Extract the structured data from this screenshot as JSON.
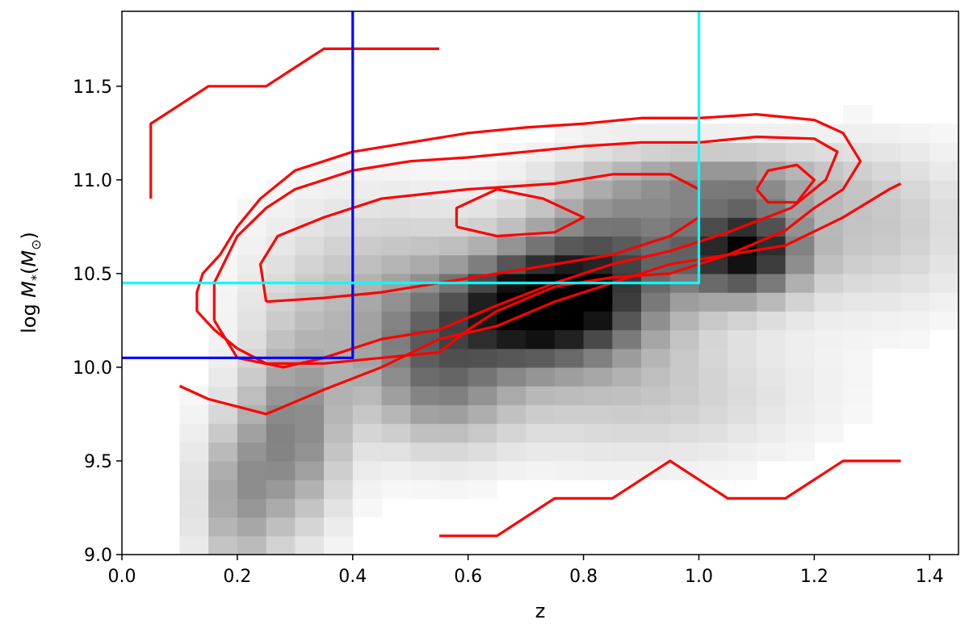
{
  "chart_data": {
    "type": "heatmap",
    "xlabel": "z",
    "ylabel_prefix": "log ",
    "ylabel_math_symbol": "M",
    "ylabel_math_subscript": "*",
    "ylabel_math_unit": "M",
    "ylabel_math_unit_subscript": "⊙",
    "xlim": [
      0.0,
      1.45
    ],
    "ylim": [
      9.0,
      11.9
    ],
    "xticks": [
      "0.0",
      "0.2",
      "0.4",
      "0.6",
      "0.8",
      "1.0",
      "1.2",
      "1.4"
    ],
    "xtick_values": [
      0.0,
      0.2,
      0.4,
      0.6,
      0.8,
      1.0,
      1.2,
      1.4
    ],
    "yticks": [
      "9.0",
      "9.5",
      "10.0",
      "10.5",
      "11.0",
      "11.5"
    ],
    "ytick_values": [
      9.0,
      9.5,
      10.0,
      10.5,
      11.0,
      11.5
    ],
    "grid": false,
    "density": {
      "colormap": "greys",
      "x_bin_width": 0.05,
      "y_bin_width": 0.1,
      "comment_units": "x = bin center redshift, y = bin center log mass, v = relative density 0-1",
      "blobs": [
        {
          "x": 0.73,
          "y": 10.32,
          "sx": 0.1,
          "sy": 0.2,
          "a": 1.0
        },
        {
          "x": 1.08,
          "y": 10.62,
          "sx": 0.07,
          "sy": 0.17,
          "a": 0.88
        },
        {
          "x": 0.86,
          "y": 10.6,
          "sx": 0.11,
          "sy": 0.3,
          "a": 0.55
        },
        {
          "x": 0.55,
          "y": 10.0,
          "sx": 0.09,
          "sy": 0.28,
          "a": 0.45
        },
        {
          "x": 0.3,
          "y": 9.65,
          "sx": 0.06,
          "sy": 0.35,
          "a": 0.45
        },
        {
          "x": 0.2,
          "y": 9.3,
          "sx": 0.05,
          "sy": 0.3,
          "a": 0.35
        },
        {
          "x": 0.45,
          "y": 10.4,
          "sx": 0.14,
          "sy": 0.35,
          "a": 0.25
        },
        {
          "x": 1.3,
          "y": 10.75,
          "sx": 0.13,
          "sy": 0.3,
          "a": 0.22
        },
        {
          "x": 0.9,
          "y": 9.85,
          "sx": 0.2,
          "sy": 0.25,
          "a": 0.2
        },
        {
          "x": 1.05,
          "y": 11.0,
          "sx": 0.12,
          "sy": 0.12,
          "a": 0.35
        }
      ]
    },
    "contours": [
      {
        "name": "contour-outer",
        "color": "#ff0000",
        "points": [
          [
            0.25,
            10.02
          ],
          [
            0.2,
            10.1
          ],
          [
            0.16,
            10.2
          ],
          [
            0.13,
            10.3
          ],
          [
            0.13,
            10.4
          ],
          [
            0.14,
            10.5
          ],
          [
            0.17,
            10.6
          ],
          [
            0.2,
            10.75
          ],
          [
            0.24,
            10.9
          ],
          [
            0.3,
            11.05
          ],
          [
            0.4,
            11.15
          ],
          [
            0.5,
            11.2
          ],
          [
            0.6,
            11.25
          ],
          [
            0.7,
            11.28
          ],
          [
            0.8,
            11.3
          ],
          [
            0.9,
            11.33
          ],
          [
            1.0,
            11.33
          ],
          [
            1.1,
            11.35
          ],
          [
            1.2,
            11.32
          ],
          [
            1.25,
            11.25
          ],
          [
            1.28,
            11.1
          ],
          [
            1.25,
            10.95
          ],
          [
            1.2,
            10.85
          ],
          [
            1.15,
            10.73
          ],
          [
            1.05,
            10.6
          ],
          [
            0.95,
            10.5
          ],
          [
            0.85,
            10.48
          ],
          [
            0.75,
            10.43
          ],
          [
            0.65,
            10.3
          ],
          [
            0.6,
            10.2
          ],
          [
            0.55,
            10.08
          ],
          [
            0.45,
            10.05
          ],
          [
            0.35,
            10.02
          ],
          [
            0.25,
            10.02
          ]
        ]
      },
      {
        "name": "contour-inner-left",
        "color": "#ff0000",
        "points": [
          [
            0.25,
            10.35
          ],
          [
            0.24,
            10.55
          ],
          [
            0.27,
            10.7
          ],
          [
            0.35,
            10.8
          ],
          [
            0.45,
            10.9
          ],
          [
            0.6,
            10.95
          ],
          [
            0.75,
            10.98
          ],
          [
            0.85,
            11.03
          ],
          [
            0.95,
            11.03
          ],
          [
            1.0,
            10.95
          ],
          [
            1.0,
            10.8
          ],
          [
            0.95,
            10.7
          ],
          [
            0.85,
            10.6
          ],
          [
            0.75,
            10.55
          ],
          [
            0.65,
            10.5
          ],
          [
            0.55,
            10.45
          ],
          [
            0.45,
            10.4
          ],
          [
            0.35,
            10.37
          ],
          [
            0.25,
            10.35
          ]
        ]
      },
      {
        "name": "contour-inner-mid",
        "color": "#ff0000",
        "points": [
          [
            0.58,
            10.75
          ],
          [
            0.58,
            10.85
          ],
          [
            0.65,
            10.95
          ],
          [
            0.73,
            10.9
          ],
          [
            0.8,
            10.8
          ],
          [
            0.75,
            10.72
          ],
          [
            0.65,
            10.7
          ],
          [
            0.58,
            10.75
          ]
        ]
      },
      {
        "name": "contour-inner-right",
        "color": "#ff0000",
        "points": [
          [
            1.1,
            10.95
          ],
          [
            1.12,
            11.05
          ],
          [
            1.17,
            11.08
          ],
          [
            1.2,
            11.0
          ],
          [
            1.17,
            10.88
          ],
          [
            1.12,
            10.88
          ],
          [
            1.1,
            10.95
          ]
        ]
      },
      {
        "name": "contour-mid",
        "color": "#ff0000",
        "points": [
          [
            0.16,
            10.25
          ],
          [
            0.16,
            10.45
          ],
          [
            0.2,
            10.7
          ],
          [
            0.25,
            10.85
          ],
          [
            0.3,
            10.95
          ],
          [
            0.4,
            11.05
          ],
          [
            0.5,
            11.1
          ],
          [
            0.6,
            11.12
          ],
          [
            0.7,
            11.15
          ],
          [
            0.8,
            11.18
          ],
          [
            0.9,
            11.2
          ],
          [
            1.0,
            11.2
          ],
          [
            1.1,
            11.23
          ],
          [
            1.2,
            11.22
          ],
          [
            1.24,
            11.15
          ],
          [
            1.22,
            11.0
          ],
          [
            1.16,
            10.85
          ],
          [
            1.05,
            10.72
          ],
          [
            0.95,
            10.62
          ],
          [
            0.85,
            10.55
          ],
          [
            0.75,
            10.45
          ],
          [
            0.65,
            10.33
          ],
          [
            0.55,
            10.2
          ],
          [
            0.45,
            10.15
          ],
          [
            0.35,
            10.05
          ],
          [
            0.28,
            10.0
          ],
          [
            0.2,
            10.05
          ],
          [
            0.16,
            10.25
          ]
        ]
      },
      {
        "name": "contour-bottom",
        "color": "#ff0000",
        "points": [
          [
            0.55,
            9.1
          ],
          [
            0.65,
            9.1
          ],
          [
            0.75,
            9.3
          ],
          [
            0.85,
            9.3
          ],
          [
            0.95,
            9.5
          ],
          [
            1.05,
            9.3
          ],
          [
            1.15,
            9.3
          ],
          [
            1.25,
            9.5
          ],
          [
            1.35,
            9.5
          ]
        ]
      },
      {
        "name": "contour-top-left",
        "color": "#ff0000",
        "points": [
          [
            0.05,
            10.9
          ],
          [
            0.05,
            11.3
          ],
          [
            0.15,
            11.5
          ],
          [
            0.25,
            11.5
          ],
          [
            0.35,
            11.7
          ],
          [
            0.55,
            11.7
          ]
        ]
      },
      {
        "name": "contour-lower-wing",
        "color": "#ff0000",
        "points": [
          [
            0.1,
            9.9
          ],
          [
            0.15,
            9.83
          ],
          [
            0.25,
            9.75
          ],
          [
            0.35,
            9.88
          ],
          [
            0.45,
            10.0
          ],
          [
            0.55,
            10.15
          ],
          [
            0.65,
            10.22
          ],
          [
            0.75,
            10.35
          ],
          [
            0.85,
            10.45
          ],
          [
            0.95,
            10.55
          ],
          [
            1.05,
            10.6
          ],
          [
            1.15,
            10.65
          ],
          [
            1.25,
            10.8
          ],
          [
            1.33,
            10.95
          ],
          [
            1.35,
            10.98
          ]
        ]
      }
    ],
    "selection_lines": [
      {
        "name": "blue-selection",
        "color": "#0000ff",
        "points": [
          [
            0.0,
            10.05
          ],
          [
            0.4,
            10.05
          ],
          [
            0.4,
            11.9
          ]
        ]
      },
      {
        "name": "cyan-selection",
        "color": "#00ffff",
        "points": [
          [
            0.0,
            10.45
          ],
          [
            1.0,
            10.45
          ],
          [
            1.0,
            11.9
          ]
        ]
      }
    ]
  }
}
